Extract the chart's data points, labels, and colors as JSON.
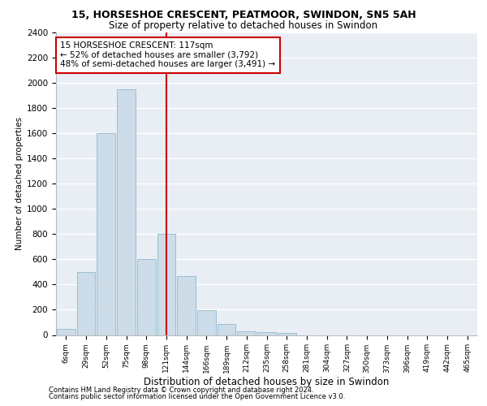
{
  "title1": "15, HORSESHOE CRESCENT, PEATMOOR, SWINDON, SN5 5AH",
  "title2": "Size of property relative to detached houses in Swindon",
  "xlabel": "Distribution of detached houses by size in Swindon",
  "ylabel": "Number of detached properties",
  "footnote1": "Contains HM Land Registry data © Crown copyright and database right 2024.",
  "footnote2": "Contains public sector information licensed under the Open Government Licence v3.0.",
  "bar_labels": [
    "6sqm",
    "29sqm",
    "52sqm",
    "75sqm",
    "98sqm",
    "121sqm",
    "144sqm",
    "166sqm",
    "189sqm",
    "212sqm",
    "235sqm",
    "258sqm",
    "281sqm",
    "304sqm",
    "327sqm",
    "350sqm",
    "373sqm",
    "396sqm",
    "419sqm",
    "442sqm",
    "465sqm"
  ],
  "bar_values": [
    50,
    500,
    1600,
    1950,
    600,
    800,
    470,
    195,
    90,
    30,
    25,
    15,
    0,
    0,
    0,
    0,
    0,
    0,
    0,
    0,
    0
  ],
  "bar_color": "#ccdce8",
  "bar_edgecolor": "#90b8d0",
  "vline_index": 5,
  "vline_color": "#cc0000",
  "annotation_title": "15 HORSESHOE CRESCENT: 117sqm",
  "annotation_line1": "← 52% of detached houses are smaller (3,792)",
  "annotation_line2": "48% of semi-detached houses are larger (3,491) →",
  "ylim": [
    0,
    2400
  ],
  "yticks": [
    0,
    200,
    400,
    600,
    800,
    1000,
    1200,
    1400,
    1600,
    1800,
    2000,
    2200,
    2400
  ],
  "axes_bg": "#e8eef4",
  "grid_color": "#ffffff"
}
